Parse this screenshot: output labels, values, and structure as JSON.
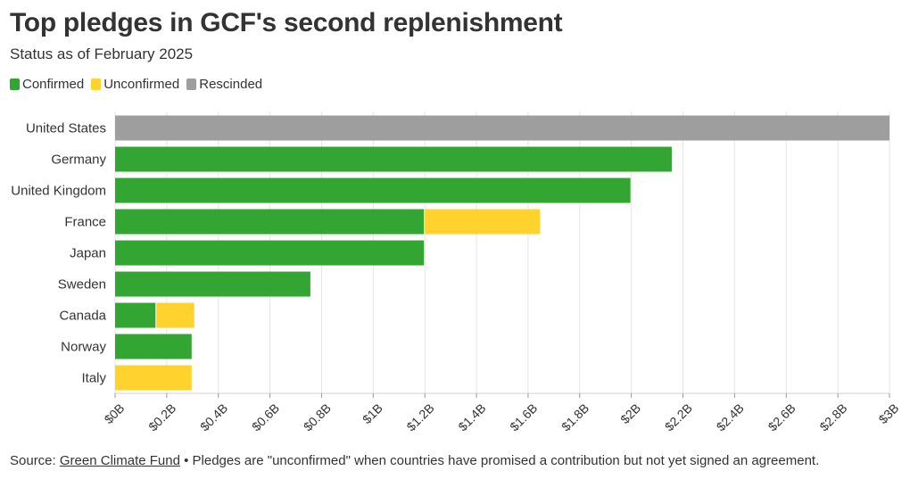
{
  "title": "Top pledges in GCF's second replenishment",
  "subtitle": "Status as of February 2025",
  "legend": [
    {
      "label": "Confirmed",
      "color": "#33a532"
    },
    {
      "label": "Unconfirmed",
      "color": "#ffd22e"
    },
    {
      "label": "Rescinded",
      "color": "#9e9e9e"
    }
  ],
  "footer": {
    "source_prefix": "Source: ",
    "source_link": "Green Climate Fund",
    "note": " • Pledges are \"unconfirmed\" when countries have promised a contribution but not yet signed an agreement."
  },
  "chart_data": {
    "type": "bar",
    "orientation": "horizontal",
    "stacked": true,
    "categories": [
      "United States",
      "Germany",
      "United Kingdom",
      "France",
      "Japan",
      "Sweden",
      "Canada",
      "Norway",
      "Italy"
    ],
    "series": [
      {
        "name": "Confirmed",
        "color": "#33a532",
        "values": [
          0,
          2.16,
          2.0,
          1.2,
          1.2,
          0.76,
          0.16,
          0.3,
          0
        ]
      },
      {
        "name": "Unconfirmed",
        "color": "#ffd22e",
        "values": [
          0,
          0,
          0,
          0.45,
          0,
          0,
          0.15,
          0,
          0.3
        ]
      },
      {
        "name": "Rescinded",
        "color": "#9e9e9e",
        "values": [
          3.0,
          0,
          0,
          0,
          0,
          0,
          0,
          0,
          0
        ]
      }
    ],
    "xlim": [
      0,
      3
    ],
    "xticks": [
      0,
      0.2,
      0.4,
      0.6,
      0.8,
      1,
      1.2,
      1.4,
      1.6,
      1.8,
      2,
      2.2,
      2.4,
      2.6,
      2.8,
      3
    ],
    "xtick_labels": [
      "$0B",
      "$0.2B",
      "$0.4B",
      "$0.6B",
      "$0.8B",
      "$1B",
      "$1.2B",
      "$1.4B",
      "$1.6B",
      "$1.8B",
      "$2B",
      "$2.2B",
      "$2.4B",
      "$2.6B",
      "$2.8B",
      "$3B"
    ],
    "grid": "vertical",
    "legend_position": "top-left"
  }
}
